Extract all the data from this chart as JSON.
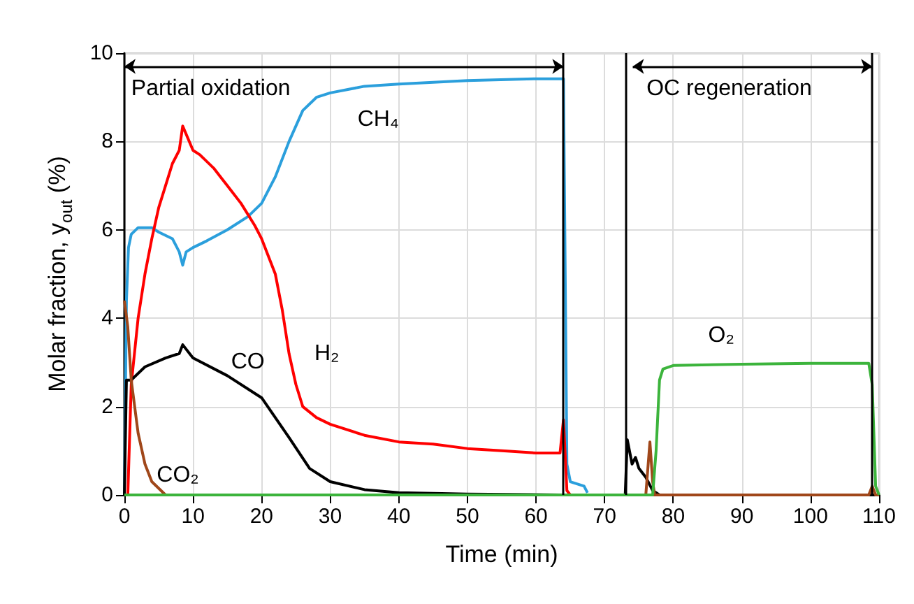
{
  "chart_data": {
    "type": "line",
    "xlabel": "Time (min)",
    "ylabel": "Molar fraction, y$_{out}$ (%)",
    "xlim": [
      0,
      110
    ],
    "xticks": [
      0,
      10,
      20,
      30,
      40,
      50,
      60,
      70,
      80,
      90,
      100,
      110
    ],
    "ylim": [
      0,
      10
    ],
    "yticks": [
      0,
      2,
      4,
      6,
      8,
      10
    ],
    "grid": true,
    "legend": false,
    "marker": "none",
    "line_style": "solid",
    "annotations": [
      "Partial oxidation",
      "OC regeneration"
    ],
    "ref_lines": [
      {
        "axis": "x",
        "value": 64,
        "color": "#000000"
      },
      {
        "axis": "x",
        "value": 73,
        "color": "#000000"
      },
      {
        "axis": "x",
        "value": 109,
        "color": "#000000"
      }
    ],
    "series": [
      {
        "name": "CH₄",
        "color": "#2b9fdc",
        "x": [
          0,
          0.3,
          0.6,
          1,
          2,
          4,
          5,
          7,
          8,
          8.5,
          9,
          10,
          12,
          15,
          18,
          20,
          22,
          24,
          26,
          28,
          30,
          35,
          40,
          50,
          60,
          64,
          64.5,
          65,
          67,
          67.5
        ],
        "values": [
          0,
          4.4,
          5.6,
          5.9,
          6.05,
          6.05,
          5.95,
          5.8,
          5.5,
          5.2,
          5.5,
          5.6,
          5.75,
          6.0,
          6.3,
          6.6,
          7.2,
          8.0,
          8.7,
          9.0,
          9.1,
          9.25,
          9.3,
          9.38,
          9.42,
          9.42,
          0.7,
          0.3,
          0.2,
          0.05
        ]
      },
      {
        "name": "H₂",
        "color": "#ff0000",
        "x": [
          0,
          0.5,
          1,
          2,
          3,
          4,
          5,
          6,
          7,
          8,
          8.5,
          10,
          11,
          13,
          15,
          17,
          19,
          20,
          22,
          23,
          24,
          25,
          26,
          28,
          30,
          35,
          40,
          45,
          50,
          55,
          60,
          63.5,
          64,
          64.5,
          65,
          110
        ],
        "values": [
          0,
          0,
          2.5,
          4.0,
          5.0,
          5.8,
          6.5,
          7.0,
          7.5,
          7.8,
          8.35,
          7.8,
          7.7,
          7.4,
          7.0,
          6.6,
          6.1,
          5.8,
          5.0,
          4.2,
          3.2,
          2.5,
          2.0,
          1.75,
          1.6,
          1.35,
          1.2,
          1.15,
          1.05,
          1.0,
          0.95,
          0.95,
          1.7,
          0.1,
          0,
          0
        ]
      },
      {
        "name": "CO",
        "color": "#000000",
        "x": [
          0,
          0.3,
          1,
          3,
          6,
          8,
          8.5,
          10,
          15,
          20,
          24,
          27,
          30,
          35,
          40,
          50,
          64,
          73,
          73.3,
          74,
          74.5,
          75,
          76,
          77,
          78,
          110
        ],
        "values": [
          0,
          2.6,
          2.6,
          2.9,
          3.1,
          3.2,
          3.4,
          3.1,
          2.7,
          2.2,
          1.3,
          0.6,
          0.3,
          0.12,
          0.05,
          0.02,
          0,
          0,
          1.25,
          0.7,
          0.85,
          0.6,
          0.4,
          0.1,
          0,
          0
        ]
      },
      {
        "name": "CO₂",
        "color": "#a0471a",
        "x": [
          0,
          0.5,
          1,
          2,
          3,
          4,
          6,
          76,
          76.6,
          77,
          77.3,
          108.5,
          109,
          109.5,
          110
        ],
        "values": [
          4.4,
          3.8,
          2.6,
          1.4,
          0.7,
          0.3,
          0,
          0,
          1.2,
          0.3,
          0,
          0,
          0.2,
          0,
          0
        ]
      },
      {
        "name": "O₂",
        "color": "#3cb43c",
        "x": [
          0,
          77,
          77.5,
          78,
          78.5,
          80,
          90,
          100,
          108.5,
          109,
          109.5,
          110
        ],
        "values": [
          0,
          0,
          1.0,
          2.6,
          2.85,
          2.93,
          2.96,
          2.98,
          2.98,
          2.5,
          0.2,
          0
        ]
      }
    ]
  }
}
